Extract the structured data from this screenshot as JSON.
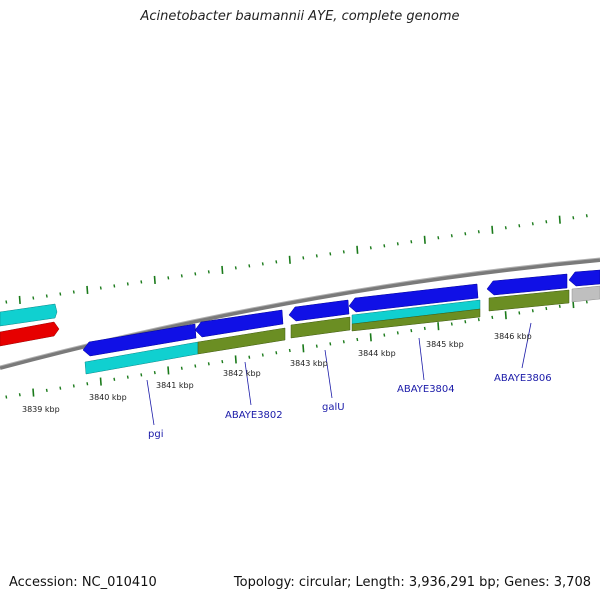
{
  "title": "Acinetobacter baumannii AYE, complete genome",
  "footer": {
    "accession": "Accession: NC_010410",
    "summary": "Topology: circular; Length: 3,936,291 bp; Genes: 3,708"
  },
  "colors": {
    "backbone": "#808080",
    "tick": "#1a7a1a",
    "forward_gene": "#1010e6",
    "reverse_gene": "#e60000",
    "cyan_feature": "#10d0d0",
    "olive_feature": "#6b8e23",
    "grey_feature": "#bfbfbf",
    "label": "#1a1aa8"
  },
  "scale_labels": [
    {
      "text": "3839 kbp"
    },
    {
      "text": "3840 kbp"
    },
    {
      "text": "3841 kbp"
    },
    {
      "text": "3842 kbp"
    },
    {
      "text": "3843 kbp"
    },
    {
      "text": "3844 kbp"
    },
    {
      "text": "3845 kbp"
    },
    {
      "text": "3846 kbp"
    }
  ],
  "gene_labels": [
    {
      "text": "pgi"
    },
    {
      "text": "ABAYE3802"
    },
    {
      "text": "galU"
    },
    {
      "text": "ABAYE3804"
    },
    {
      "text": "ABAYE3806"
    }
  ]
}
